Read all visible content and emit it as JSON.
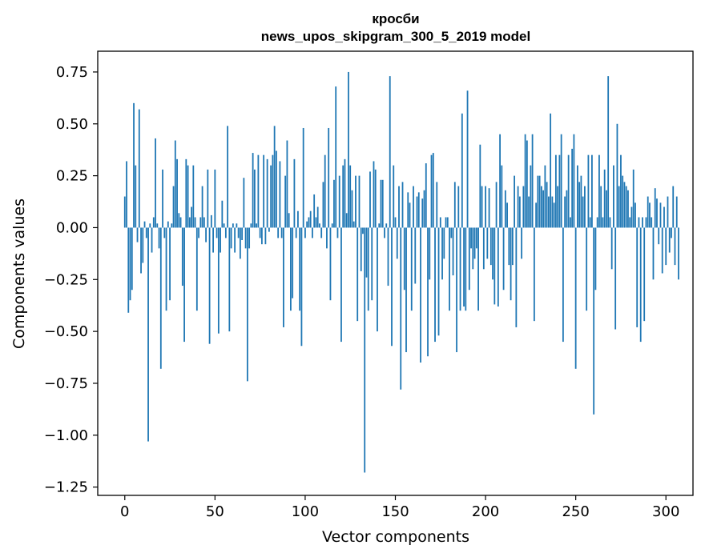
{
  "chart_data": {
    "type": "bar",
    "title": "кросби",
    "subtitle": "news_upos_skipgram_300_5_2019 model",
    "xlabel": "Vector components",
    "ylabel": "Components values",
    "xlim": [
      -15,
      315
    ],
    "ylim": [
      -1.29,
      0.85
    ],
    "x_ticks": [
      0,
      50,
      100,
      150,
      200,
      250,
      300
    ],
    "x_tick_labels": [
      "0",
      "50",
      "100",
      "150",
      "200",
      "250",
      "300"
    ],
    "y_ticks": [
      0.75,
      0.5,
      0.25,
      0.0,
      -0.25,
      -0.5,
      -0.75,
      -1.0,
      -1.25
    ],
    "y_tick_labels": [
      "0.75",
      "0.50",
      "0.25",
      "0.00",
      "−0.25",
      "−0.50",
      "−0.75",
      "−1.00",
      "−1.25"
    ],
    "bar_color": "#1f77b4",
    "values": [
      0.15,
      0.32,
      -0.41,
      -0.35,
      -0.3,
      0.6,
      0.3,
      -0.07,
      0.57,
      -0.22,
      -0.17,
      0.03,
      -0.05,
      -1.03,
      0.02,
      -0.12,
      0.05,
      0.43,
      0.02,
      -0.1,
      -0.68,
      0.28,
      -0.05,
      -0.4,
      0.03,
      -0.35,
      0.02,
      0.2,
      0.42,
      0.33,
      0.07,
      0.05,
      -0.28,
      -0.55,
      0.33,
      0.3,
      0.05,
      0.1,
      0.3,
      0.05,
      -0.4,
      -0.05,
      0.05,
      0.2,
      0.05,
      -0.07,
      0.28,
      -0.56,
      0.06,
      -0.12,
      0.28,
      -0.05,
      -0.51,
      -0.12,
      0.13,
      0.02,
      -0.05,
      0.49,
      -0.5,
      -0.1,
      0.02,
      -0.12,
      0.02,
      -0.05,
      -0.15,
      -0.06,
      0.24,
      -0.1,
      -0.74,
      -0.1,
      0.02,
      0.36,
      0.28,
      0.02,
      0.35,
      -0.05,
      -0.08,
      0.35,
      -0.08,
      0.33,
      -0.02,
      0.3,
      0.35,
      0.49,
      0.37,
      -0.05,
      0.32,
      -0.05,
      -0.48,
      0.25,
      0.42,
      0.07,
      -0.4,
      -0.34,
      0.33,
      -0.05,
      0.08,
      -0.4,
      -0.57,
      0.48,
      -0.05,
      0.03,
      0.05,
      0.08,
      -0.05,
      0.16,
      0.05,
      0.1,
      0.02,
      -0.05,
      0.22,
      0.35,
      -0.1,
      0.48,
      -0.35,
      0.02,
      0.23,
      0.68,
      -0.05,
      0.25,
      -0.55,
      0.3,
      0.33,
      0.07,
      0.75,
      0.3,
      0.18,
      0.03,
      0.25,
      -0.45,
      0.25,
      -0.21,
      -0.03,
      -1.18,
      -0.24,
      -0.4,
      0.27,
      -0.35,
      0.32,
      0.28,
      -0.5,
      0.02,
      0.23,
      0.23,
      -0.05,
      0.02,
      -0.28,
      0.73,
      -0.57,
      0.3,
      0.05,
      -0.15,
      0.2,
      -0.78,
      0.22,
      -0.3,
      -0.6,
      0.17,
      0.12,
      -0.4,
      0.2,
      -0.27,
      0.15,
      0.17,
      -0.65,
      0.14,
      0.18,
      0.31,
      -0.62,
      -0.25,
      0.35,
      0.36,
      -0.55,
      0.22,
      -0.52,
      0.05,
      -0.25,
      -0.15,
      0.05,
      0.05,
      -0.4,
      -0.05,
      -0.23,
      0.22,
      -0.6,
      0.2,
      -0.4,
      0.55,
      -0.38,
      -0.4,
      0.66,
      -0.3,
      -0.1,
      -0.2,
      -0.15,
      -0.1,
      -0.4,
      0.4,
      0.2,
      -0.2,
      0.2,
      -0.15,
      0.19,
      -0.18,
      -0.25,
      -0.37,
      0.22,
      -0.38,
      0.45,
      0.3,
      -0.3,
      0.18,
      0.12,
      -0.18,
      -0.35,
      -0.18,
      0.25,
      -0.48,
      0.2,
      0.15,
      -0.15,
      0.2,
      0.45,
      0.42,
      0.15,
      0.3,
      0.45,
      -0.45,
      0.12,
      0.25,
      0.25,
      0.2,
      0.18,
      0.3,
      0.22,
      0.15,
      0.55,
      0.15,
      0.12,
      0.35,
      0.2,
      0.35,
      0.45,
      -0.55,
      0.15,
      0.18,
      0.35,
      0.05,
      0.38,
      0.45,
      -0.68,
      0.3,
      0.22,
      0.25,
      0.15,
      0.2,
      -0.4,
      0.35,
      0.05,
      0.35,
      -0.9,
      -0.3,
      0.05,
      0.35,
      0.2,
      0.05,
      0.28,
      0.18,
      0.73,
      0.05,
      -0.2,
      0.3,
      -0.49,
      0.5,
      0.2,
      0.35,
      0.25,
      0.22,
      0.2,
      0.18,
      0.05,
      0.1,
      0.28,
      0.12,
      -0.48,
      0.05,
      -0.55,
      0.05,
      -0.45,
      0.05,
      0.15,
      0.12,
      0.05,
      -0.25,
      0.19,
      0.14,
      -0.08,
      0.12,
      -0.22,
      0.1,
      -0.18,
      0.15,
      -0.12,
      -0.05,
      0.2,
      -0.18,
      0.15,
      -0.25
    ]
  }
}
